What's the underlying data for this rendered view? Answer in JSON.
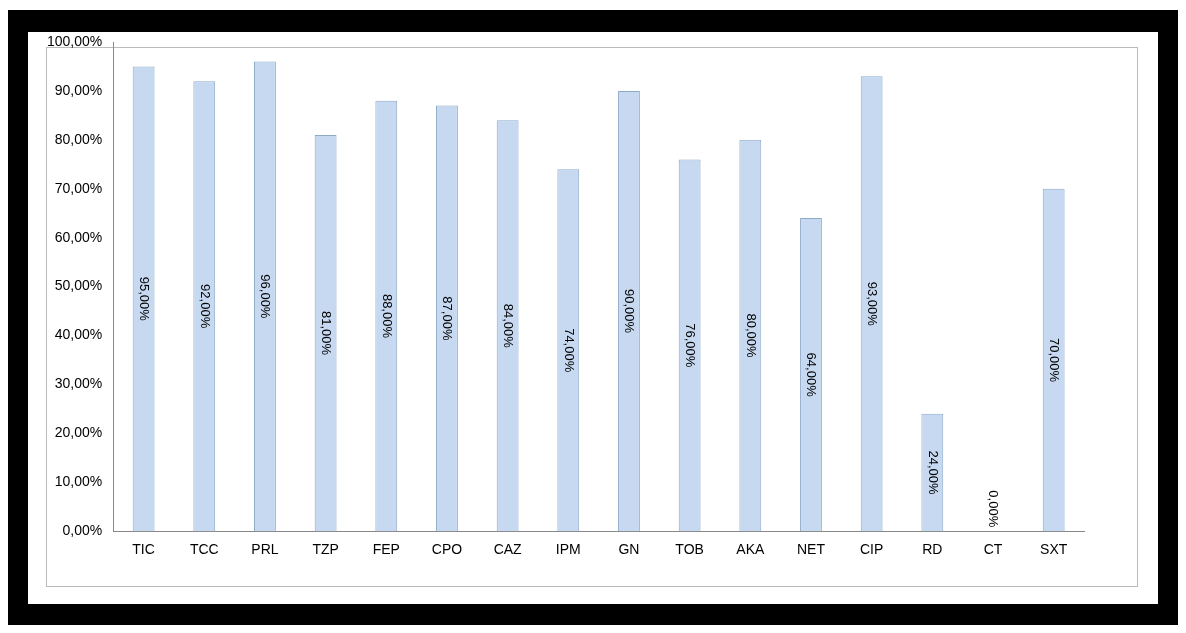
{
  "chart_data": {
    "type": "bar",
    "categories": [
      "TIC",
      "TCC",
      "PRL",
      "TZP",
      "FEP",
      "CPO",
      "CAZ",
      "IPM",
      "GN",
      "TOB",
      "AKA",
      "NET",
      "CIP",
      "RD",
      "CT",
      "SXT"
    ],
    "values": [
      95,
      92,
      96,
      81,
      88,
      87,
      84,
      74,
      90,
      76,
      80,
      64,
      93,
      24,
      0,
      70
    ],
    "value_labels": [
      "95,00%",
      "92,00%",
      "96,00%",
      "81,00%",
      "88,00%",
      "87,00%",
      "84,00%",
      "74,00%",
      "90,00%",
      "76,00%",
      "80,00%",
      "64,00%",
      "93,00%",
      "24,00%",
      "0,00%",
      "70,00%"
    ],
    "color": "#c6d9f1",
    "ylim": [
      0,
      100
    ],
    "yticks": [
      {
        "value": 0,
        "label": "0,00%"
      },
      {
        "value": 10,
        "label": "10,00%"
      },
      {
        "value": 20,
        "label": "20,00%"
      },
      {
        "value": 30,
        "label": "30,00%"
      },
      {
        "value": 40,
        "label": "40,00%"
      },
      {
        "value": 50,
        "label": "50,00%"
      },
      {
        "value": 60,
        "label": "60,00%"
      },
      {
        "value": 70,
        "label": "70,00%"
      },
      {
        "value": 80,
        "label": "80,00%"
      },
      {
        "value": 90,
        "label": "90,00%"
      },
      {
        "value": 100,
        "label": "100,00%"
      }
    ],
    "grid": false,
    "legend": false
  }
}
